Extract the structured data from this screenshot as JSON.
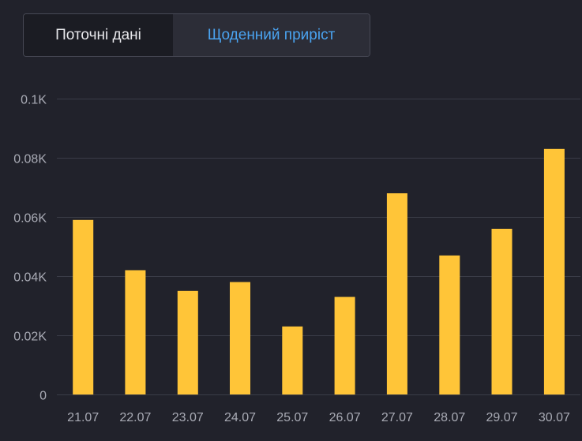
{
  "tabs": {
    "current_label": "Поточні дані",
    "daily_label": "Щоденний приріст",
    "active": "daily"
  },
  "colors": {
    "background": "#21222b",
    "bar": "#ffc538",
    "active_tab_text": "#4aa3f0",
    "grid": "#3a3c47"
  },
  "chart_data": {
    "type": "bar",
    "categories": [
      "21.07",
      "22.07",
      "23.07",
      "24.07",
      "25.07",
      "26.07",
      "27.07",
      "28.07",
      "29.07",
      "30.07"
    ],
    "values": [
      59,
      42,
      35,
      38,
      23,
      33,
      68,
      47,
      56,
      83
    ],
    "ylim": [
      0,
      100
    ],
    "yticks": [
      0,
      20,
      40,
      60,
      80,
      100
    ],
    "ytick_labels": [
      "0",
      "0.02K",
      "0.04K",
      "0.06K",
      "0.08K",
      "0.1K"
    ],
    "grid": true,
    "title": "",
    "xlabel": "",
    "ylabel": ""
  }
}
